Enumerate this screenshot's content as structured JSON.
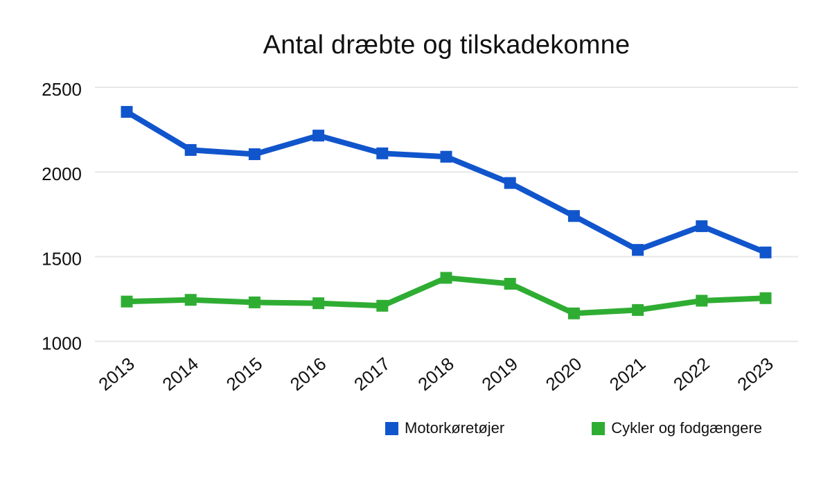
{
  "colors": {
    "background": "#ffffff",
    "grid": "#e7e7e7",
    "text": "#111111"
  },
  "chart_data": {
    "type": "line",
    "title": "Antal dræbte og tilskadekomne",
    "categories": [
      "2013",
      "2014",
      "2015",
      "2016",
      "2017",
      "2018",
      "2019",
      "2020",
      "2021",
      "2022",
      "2023"
    ],
    "series": [
      {
        "name": "Motorkøretøjer",
        "color": "#1155cc",
        "values": [
          2355,
          2130,
          2105,
          2215,
          2110,
          2090,
          1935,
          1740,
          1540,
          1680,
          1525
        ]
      },
      {
        "name": "Cykler og fodgængere",
        "color": "#2fad33",
        "values": [
          1235,
          1245,
          1230,
          1225,
          1210,
          1375,
          1340,
          1165,
          1185,
          1240,
          1255
        ]
      }
    ],
    "ylim": [
      1000,
      2500
    ],
    "yticks": [
      2500,
      2000,
      1500,
      1000
    ],
    "xlabel": "",
    "ylabel": "",
    "grid": "horizontal-only",
    "legend_position": "bottom",
    "marker": "square"
  }
}
